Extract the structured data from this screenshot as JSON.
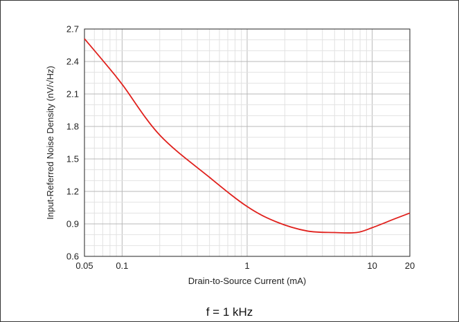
{
  "caption": "f = 1 kHz",
  "chart_data": {
    "type": "line",
    "xscale": "log",
    "xlim": [
      0.05,
      20
    ],
    "ylim": [
      0.6,
      2.7
    ],
    "xlabel": "Drain-to-Source Current (mA)",
    "ylabel": "Input-Referred Noise Density (nV/√Hz)",
    "x_ticks": [
      {
        "value": 0.05,
        "label": "0.05"
      },
      {
        "value": 0.1,
        "label": "0.1"
      },
      {
        "value": 1,
        "label": "1"
      },
      {
        "value": 10,
        "label": "10"
      },
      {
        "value": 20,
        "label": "20"
      }
    ],
    "y_ticks": [
      {
        "value": 0.6,
        "label": "0.6"
      },
      {
        "value": 0.9,
        "label": "0.9"
      },
      {
        "value": 1.2,
        "label": "1.2"
      },
      {
        "value": 1.5,
        "label": "1.5"
      },
      {
        "value": 1.8,
        "label": "1.8"
      },
      {
        "value": 2.1,
        "label": "2.1"
      },
      {
        "value": 2.4,
        "label": "2.4"
      },
      {
        "value": 2.7,
        "label": "2.7"
      }
    ],
    "grid": true,
    "series": [
      {
        "color": "#e0201c",
        "x": [
          0.05,
          0.07,
          0.1,
          0.2,
          0.5,
          1,
          1.7,
          3,
          5,
          7.5,
          10,
          15,
          20
        ],
        "y": [
          2.61,
          2.41,
          2.19,
          1.72,
          1.33,
          1.06,
          0.92,
          0.835,
          0.82,
          0.82,
          0.865,
          0.945,
          1.0
        ]
      }
    ]
  }
}
